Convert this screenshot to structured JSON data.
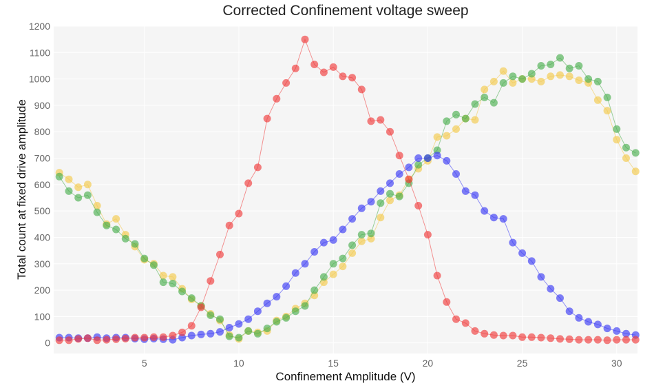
{
  "chart_data": {
    "type": "scatter",
    "title": "Corrected Confinement voltage sweep",
    "xlabel": "Confinement Amplitude (V)",
    "ylabel": "Total count at fixed drive amplitude",
    "xlim": [
      0.2,
      31.1
    ],
    "ylim": [
      -40,
      1200
    ],
    "xticks": [
      5,
      10,
      15,
      20,
      25,
      30
    ],
    "yticks": [
      0,
      100,
      200,
      300,
      400,
      500,
      600,
      700,
      800,
      900,
      1000,
      1100,
      1200
    ],
    "grid": true,
    "legend": "none",
    "series": [
      {
        "color": "#f2c94c",
        "x": [
          0.5,
          1,
          1.5,
          2,
          2.5,
          3,
          3.5,
          4,
          4.5,
          5,
          5.5,
          6,
          6.5,
          7,
          7.5,
          8,
          8.5,
          9,
          9.5,
          10,
          10.5,
          11,
          11.5,
          12,
          12.5,
          13,
          13.5,
          14,
          14.5,
          15,
          15.5,
          16,
          16.5,
          17,
          17.5,
          18,
          18.5,
          19,
          19.5,
          20,
          20.5,
          21,
          21.5,
          22,
          22.5,
          23,
          23.5,
          24,
          24.5,
          25,
          25.5,
          26,
          26.5,
          27,
          27.5,
          28,
          28.5,
          29,
          29.5,
          30,
          30.5,
          31
        ],
        "y": [
          645,
          620,
          590,
          600,
          520,
          450,
          470,
          410,
          365,
          315,
          300,
          255,
          250,
          205,
          165,
          140,
          110,
          85,
          30,
          15,
          45,
          40,
          45,
          85,
          100,
          130,
          150,
          180,
          230,
          260,
          290,
          340,
          385,
          395,
          475,
          540,
          560,
          620,
          660,
          690,
          780,
          785,
          810,
          850,
          845,
          960,
          990,
          1030,
          985,
          1000,
          1000,
          990,
          1010,
          1015,
          1010,
          995,
          985,
          920,
          880,
          770,
          700,
          650
        ]
      },
      {
        "color": "#4caf50",
        "x": [
          0.5,
          1,
          1.5,
          2,
          2.5,
          3,
          3.5,
          4,
          4.5,
          5,
          5.5,
          6,
          6.5,
          7,
          7.5,
          8,
          8.5,
          9,
          9.5,
          10,
          10.5,
          11,
          11.5,
          12,
          12.5,
          13,
          13.5,
          14,
          14.5,
          15,
          15.5,
          16,
          16.5,
          17,
          17.5,
          18,
          18.5,
          19,
          19.5,
          20,
          20.5,
          21,
          21.5,
          22,
          22.5,
          23,
          23.5,
          24,
          24.5,
          25,
          25.5,
          26,
          26.5,
          27,
          27.5,
          28,
          28.5,
          29,
          29.5,
          30,
          30.5,
          31
        ],
        "y": [
          630,
          575,
          550,
          560,
          495,
          445,
          430,
          395,
          375,
          320,
          295,
          230,
          225,
          195,
          170,
          140,
          105,
          90,
          25,
          20,
          45,
          35,
          55,
          80,
          95,
          120,
          140,
          200,
          250,
          300,
          320,
          370,
          410,
          415,
          530,
          565,
          555,
          605,
          675,
          700,
          730,
          840,
          865,
          850,
          905,
          930,
          910,
          985,
          1010,
          1000,
          1020,
          1050,
          1055,
          1080,
          1040,
          1050,
          1000,
          990,
          930,
          810,
          740,
          720
        ]
      },
      {
        "color": "#3a3af5",
        "x": [
          0.5,
          1,
          1.5,
          2,
          2.5,
          3,
          3.5,
          4,
          4.5,
          5,
          5.5,
          6,
          6.5,
          7,
          7.5,
          8,
          8.5,
          9,
          9.5,
          10,
          10.5,
          11,
          11.5,
          12,
          12.5,
          13,
          13.5,
          14,
          14.5,
          15,
          15.5,
          16,
          16.5,
          17,
          17.5,
          18,
          18.5,
          19,
          19.5,
          20,
          20.5,
          21,
          21.5,
          22,
          22.5,
          23,
          23.5,
          24,
          24.5,
          25,
          25.5,
          26,
          26.5,
          27,
          27.5,
          28,
          28.5,
          29,
          29.5,
          30,
          30.5,
          31
        ],
        "y": [
          20,
          20,
          18,
          18,
          22,
          18,
          20,
          20,
          16,
          14,
          16,
          14,
          12,
          20,
          28,
          32,
          35,
          42,
          58,
          72,
          90,
          120,
          150,
          175,
          215,
          265,
          300,
          345,
          380,
          390,
          430,
          470,
          510,
          535,
          575,
          605,
          640,
          665,
          700,
          700,
          710,
          690,
          640,
          575,
          560,
          500,
          475,
          470,
          380,
          340,
          310,
          250,
          205,
          170,
          120,
          95,
          80,
          70,
          55,
          45,
          35,
          30
        ]
      },
      {
        "color": "#f03c3c",
        "x": [
          0.5,
          1,
          1.5,
          2,
          2.5,
          3,
          3.5,
          4,
          4.5,
          5,
          5.5,
          6,
          6.5,
          7,
          7.5,
          8,
          8.5,
          9,
          9.5,
          10,
          10.5,
          11,
          11.5,
          12,
          12.5,
          13,
          13.5,
          14,
          14.5,
          15,
          15.5,
          16,
          16.5,
          17,
          17.5,
          18,
          18.5,
          19,
          19.5,
          20,
          20.5,
          21,
          21.5,
          22,
          22.5,
          23,
          23.5,
          24,
          24.5,
          25,
          25.5,
          26,
          26.5,
          27,
          27.5,
          28,
          28.5,
          29,
          29.5,
          30,
          30.5,
          31
        ],
        "y": [
          10,
          10,
          15,
          18,
          10,
          12,
          14,
          16,
          20,
          20,
          22,
          22,
          28,
          40,
          65,
          135,
          235,
          335,
          445,
          490,
          605,
          665,
          850,
          925,
          985,
          1040,
          1150,
          1055,
          1025,
          1045,
          1010,
          1005,
          960,
          840,
          845,
          800,
          710,
          620,
          520,
          410,
          255,
          155,
          90,
          75,
          45,
          35,
          30,
          28,
          28,
          22,
          22,
          20,
          18,
          15,
          14,
          12,
          12,
          12,
          10,
          12,
          12,
          12
        ]
      }
    ]
  }
}
